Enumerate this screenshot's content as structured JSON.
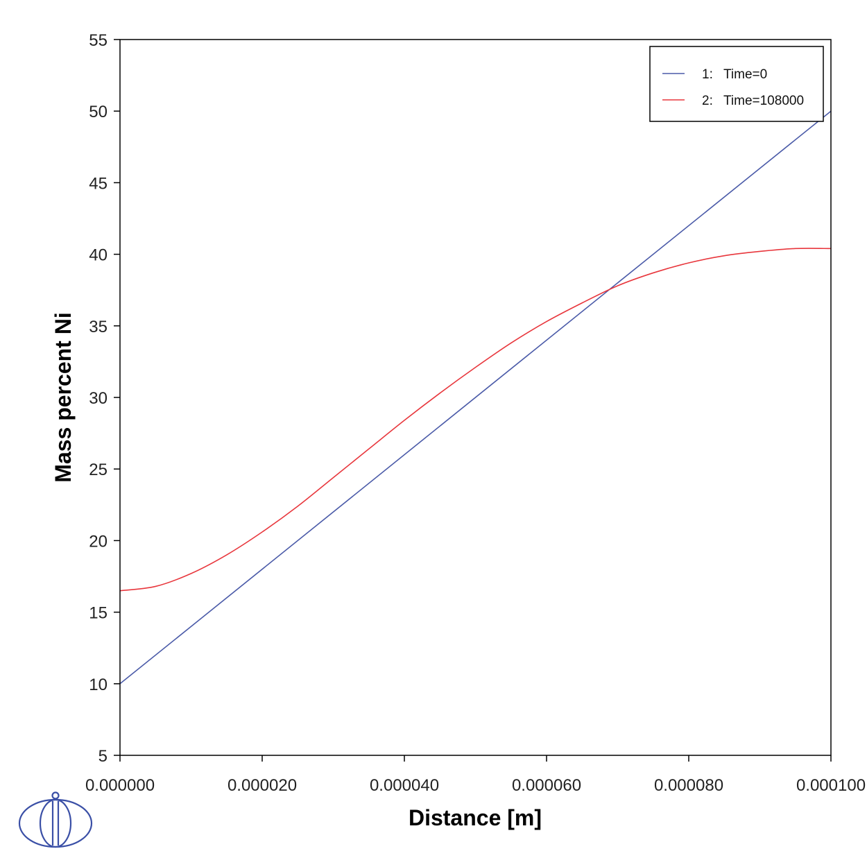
{
  "chart_data": {
    "type": "line",
    "title": "",
    "xlabel": "Distance [m]",
    "ylabel": "Mass percent Ni",
    "xlim": [
      0,
      0.0001
    ],
    "ylim": [
      5,
      55
    ],
    "x_ticks": [
      "0.000000",
      "0.000020",
      "0.000040",
      "0.000060",
      "0.000080",
      "0.000100"
    ],
    "x_tick_values": [
      0,
      2e-05,
      4e-05,
      6e-05,
      8e-05,
      0.0001
    ],
    "y_ticks": [
      "5",
      "10",
      "15",
      "20",
      "25",
      "30",
      "35",
      "40",
      "45",
      "50",
      "55"
    ],
    "y_tick_values": [
      5,
      10,
      15,
      20,
      25,
      30,
      35,
      40,
      45,
      50,
      55
    ],
    "grid": false,
    "legend_position": "top-right",
    "series": [
      {
        "name": "Time=0",
        "index": "1:",
        "color": "#4a5aa8",
        "x": [
          0,
          0.0001
        ],
        "y": [
          10,
          50
        ]
      },
      {
        "name": "Time=108000",
        "index": "2:",
        "color": "#e8363c",
        "x": [
          0,
          5e-06,
          1e-05,
          1.5e-05,
          2e-05,
          2.5e-05,
          3e-05,
          3.5e-05,
          4e-05,
          4.5e-05,
          5e-05,
          5.5e-05,
          6e-05,
          6.5e-05,
          7e-05,
          7.5e-05,
          8e-05,
          8.5e-05,
          9e-05,
          9.5e-05,
          0.0001
        ],
        "y": [
          16.5,
          16.8,
          17.7,
          19.0,
          20.6,
          22.4,
          24.4,
          26.4,
          28.4,
          30.3,
          32.1,
          33.8,
          35.3,
          36.6,
          37.8,
          38.7,
          39.4,
          39.9,
          40.2,
          40.4,
          40.4
        ]
      }
    ]
  },
  "logo": {
    "name": "thermo-calc-logo"
  }
}
